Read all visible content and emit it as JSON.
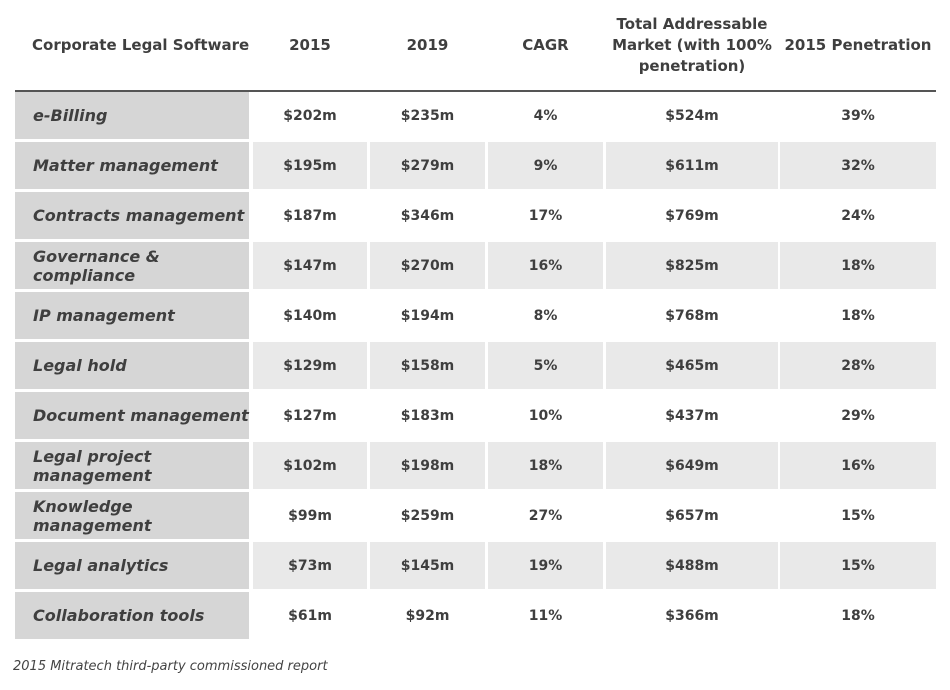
{
  "chart_data": {
    "type": "table",
    "columns": [
      "Corporate Legal Software",
      "2015",
      "2019",
      "CAGR",
      "Total Addressable Market (with 100% penetration)",
      "2015 Penetration"
    ],
    "rows": [
      [
        "e-Billing",
        "$202m",
        "$235m",
        "4%",
        "$524m",
        "39%"
      ],
      [
        "Matter management",
        "$195m",
        "$279m",
        "9%",
        "$611m",
        "32%"
      ],
      [
        "Contracts management",
        "$187m",
        "$346m",
        "17%",
        "$769m",
        "24%"
      ],
      [
        "Governance & compliance",
        "$147m",
        "$270m",
        "16%",
        "$825m",
        "18%"
      ],
      [
        "IP management",
        "$140m",
        "$194m",
        "8%",
        "$768m",
        "18%"
      ],
      [
        "Legal hold",
        "$129m",
        "$158m",
        "5%",
        "$465m",
        "28%"
      ],
      [
        "Document management",
        "$127m",
        "$183m",
        "10%",
        "$437m",
        "29%"
      ],
      [
        "Legal project management",
        "$102m",
        "$198m",
        "18%",
        "$649m",
        "16%"
      ],
      [
        "Knowledge management",
        "$99m",
        "$259m",
        "27%",
        "$657m",
        "15%"
      ],
      [
        "Legal analytics",
        "$73m",
        "$145m",
        "19%",
        "$488m",
        "15%"
      ],
      [
        "Collaboration tools",
        "$61m",
        "$92m",
        "11%",
        "$366m",
        "18%"
      ]
    ]
  },
  "colors": {
    "label_bg": "#d6d6d6",
    "shade_bg": "#e9e9e9",
    "text": "#3f3f3f"
  },
  "footnote": "2015 Mitratech third-party commissioned report"
}
